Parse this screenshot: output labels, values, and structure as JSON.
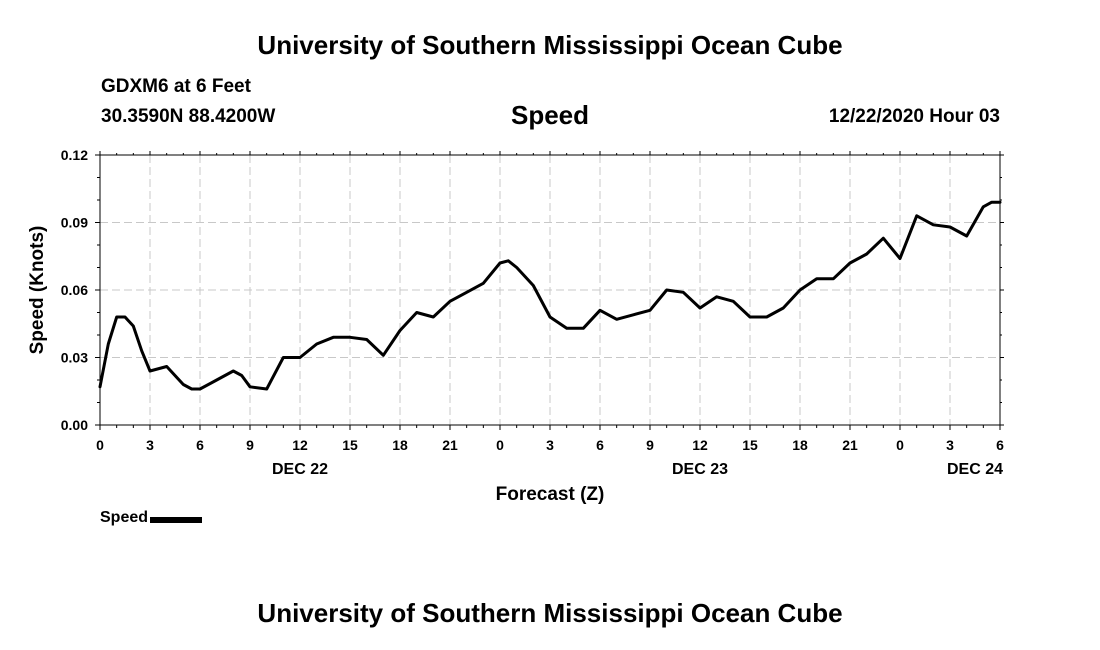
{
  "header": {
    "title": "University of Southern Mississippi Ocean Cube",
    "station": "GDXM6 at 6 Feet",
    "coords": "30.3590N 88.4200W",
    "variable": "Speed",
    "datetime": "12/22/2020 Hour 03"
  },
  "footer": {
    "title": "University of Southern Mississippi Ocean Cube"
  },
  "chart_data": {
    "type": "line",
    "title": "Speed",
    "xlabel": "Forecast (Z)",
    "ylabel": "Speed (Knots)",
    "xlim": [
      0,
      54
    ],
    "ylim": [
      0,
      0.12
    ],
    "yticks": [
      0,
      0.03,
      0.06,
      0.09,
      0.12
    ],
    "ytick_labels": [
      "0.00",
      "0.03",
      "0.06",
      "0.09",
      "0.12"
    ],
    "xticks": [
      0,
      3,
      6,
      9,
      12,
      15,
      18,
      21,
      24,
      27,
      30,
      33,
      36,
      39,
      42,
      45,
      48,
      51,
      54
    ],
    "xtick_labels": [
      "0",
      "3",
      "6",
      "9",
      "12",
      "15",
      "18",
      "21",
      "0",
      "3",
      "6",
      "9",
      "12",
      "15",
      "18",
      "21",
      "0",
      "3",
      "6"
    ],
    "day_labels": [
      {
        "label": "DEC 22",
        "x": 12
      },
      {
        "label": "DEC 23",
        "x": 36
      },
      {
        "label": "DEC 24",
        "x": 52.5
      }
    ],
    "grid": true,
    "legend": {
      "label": "Speed",
      "position": "bottom-left"
    },
    "series": [
      {
        "name": "Speed",
        "color": "#000000",
        "x": [
          0,
          0.5,
          1,
          1.5,
          2,
          2.5,
          3,
          4,
          5,
          5.5,
          6,
          7,
          8,
          8.5,
          9,
          10,
          11,
          12,
          13,
          14,
          15,
          16,
          17,
          18,
          19,
          20,
          21,
          22,
          23,
          24,
          24.5,
          25,
          26,
          27,
          28,
          29,
          30,
          31,
          32,
          33,
          34,
          35,
          36,
          37,
          38,
          39,
          40,
          41,
          42,
          43,
          44,
          45,
          46,
          47,
          48,
          49,
          50,
          51,
          52,
          53,
          53.5,
          54
        ],
        "y": [
          0.017,
          0.036,
          0.048,
          0.048,
          0.044,
          0.033,
          0.024,
          0.026,
          0.018,
          0.016,
          0.016,
          0.02,
          0.024,
          0.022,
          0.017,
          0.016,
          0.03,
          0.03,
          0.036,
          0.039,
          0.039,
          0.038,
          0.031,
          0.042,
          0.05,
          0.048,
          0.055,
          0.059,
          0.063,
          0.072,
          0.073,
          0.07,
          0.062,
          0.048,
          0.043,
          0.043,
          0.051,
          0.047,
          0.049,
          0.051,
          0.06,
          0.059,
          0.052,
          0.057,
          0.055,
          0.048,
          0.048,
          0.052,
          0.06,
          0.065,
          0.065,
          0.072,
          0.076,
          0.083,
          0.074,
          0.093,
          0.089,
          0.088,
          0.084,
          0.097,
          0.099,
          0.099
        ]
      }
    ]
  }
}
